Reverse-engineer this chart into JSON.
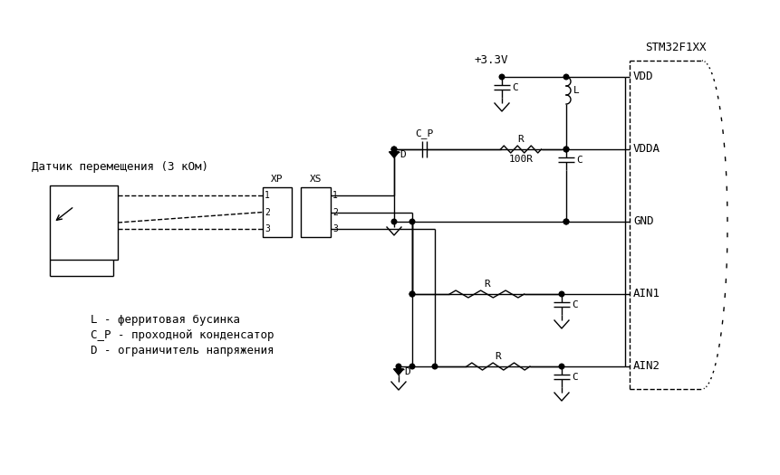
{
  "title": "STM32F1XX",
  "sensor_label": "Датчик перемещения (3 кОм)",
  "legend_lines": [
    "L - ферритовая бусинка",
    "C_P - проходной конденсатор",
    "D - ограничитель напряжения"
  ],
  "pin_labels": [
    "VDD",
    "VDDA",
    "GND",
    "AIN1",
    "AIN2"
  ],
  "voltage_label": "+3.3V",
  "resistor_label_100R": "100R",
  "bg_color": "#ffffff",
  "line_color": "#000000",
  "font_size": 9,
  "title_font_size": 9
}
